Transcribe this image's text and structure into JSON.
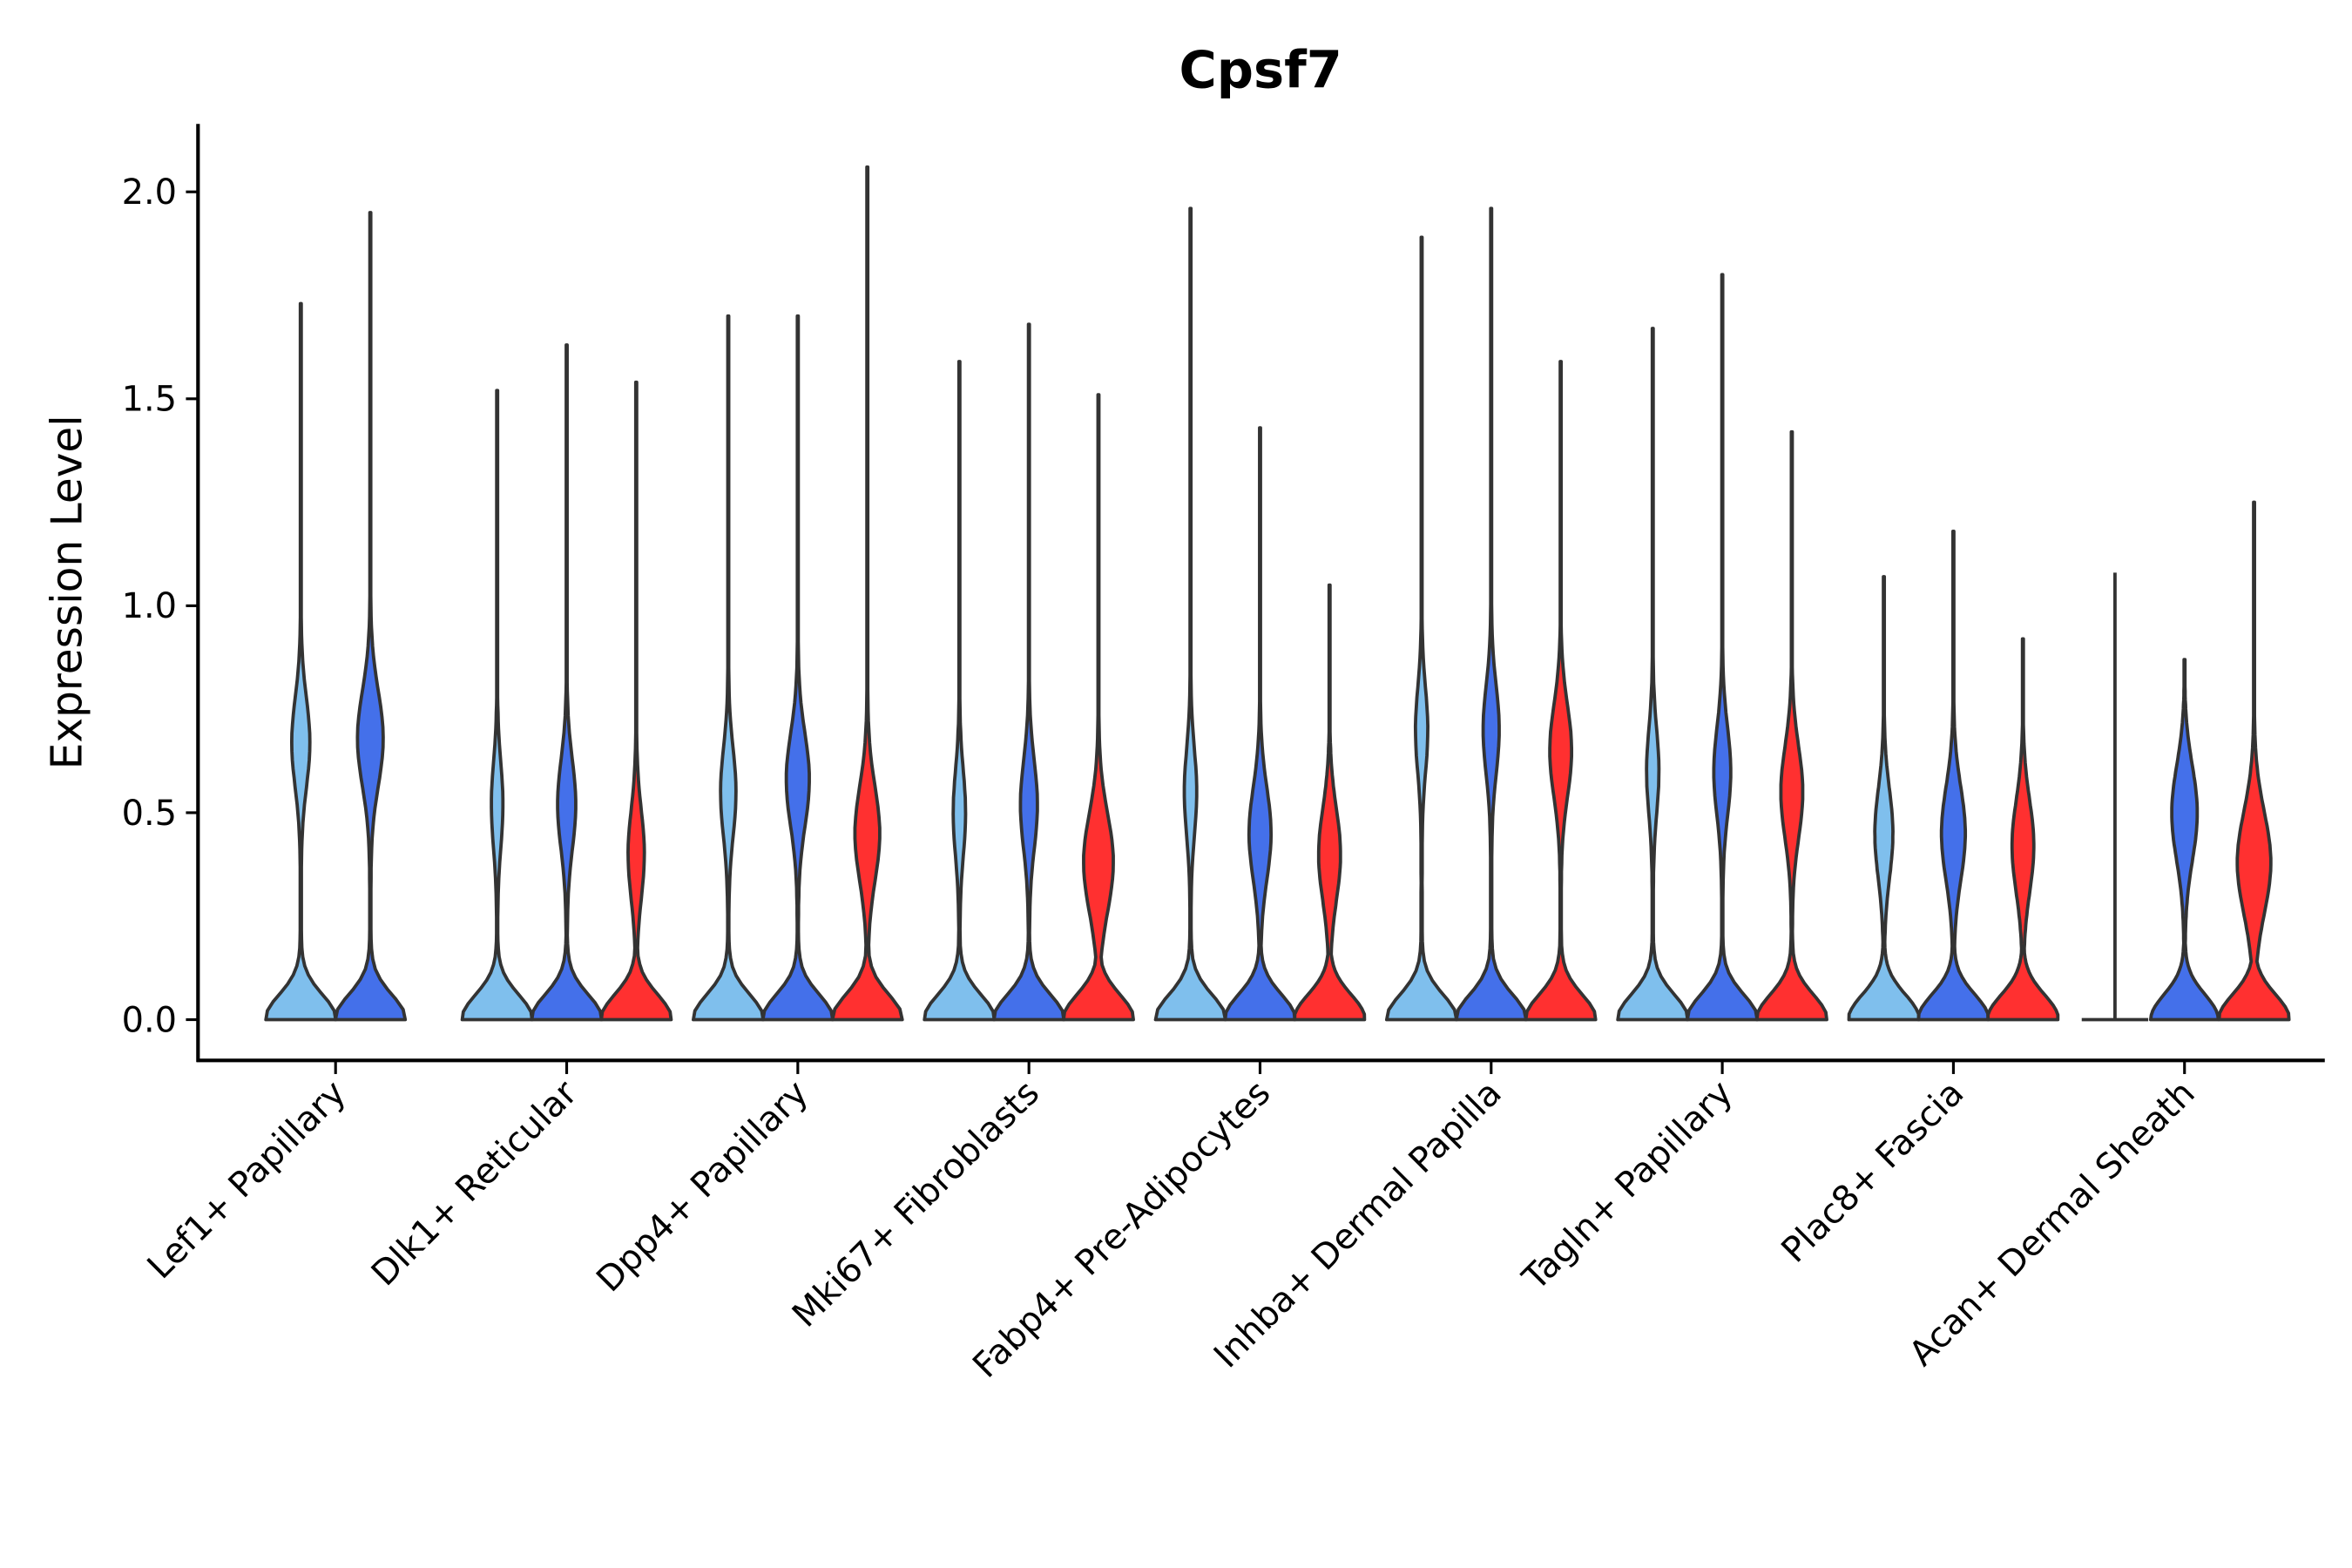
{
  "chart_data": {
    "type": "violin",
    "title": "Cpsf7",
    "xlabel": "",
    "ylabel": "Expression Level",
    "ylim": [
      -0.1,
      2.15
    ],
    "yticks": [
      0.0,
      0.5,
      1.0,
      1.5,
      2.0
    ],
    "ytick_labels": [
      "0.0",
      "0.5",
      "1.0",
      "1.5",
      "2.0"
    ],
    "grid": false,
    "legend": "none",
    "x_tick_rotation_deg": 45,
    "series_colors": {
      "light": "#7FBFED",
      "blue": "#4470EA",
      "red": "#FF3030"
    },
    "outline_color": "#333333",
    "categories": [
      "Lef1+ Papillary",
      "Dlk1+ Reticular",
      "Dpp4+ Papillary",
      "Mki67+ Fibroblasts",
      "Fabp4+ Pre-Adipocytes",
      "Inhba+ Dermal Papilla",
      "Tagln+ Papillary",
      "Plac8+ Fascia",
      "Acan+ Dermal Sheath"
    ],
    "groups": [
      {
        "category": "Lef1+ Papillary",
        "violins": [
          {
            "series": "light",
            "max": 1.73,
            "mode": 0.67,
            "mode_width": 0.45,
            "zero_width": 1.0
          },
          {
            "series": "blue",
            "max": 1.95,
            "mode": 0.68,
            "mode_width": 0.65,
            "zero_width": 1.0
          }
        ]
      },
      {
        "category": "Dlk1+ Reticular",
        "violins": [
          {
            "series": "light",
            "max": 1.52,
            "mode": 0.52,
            "mode_width": 0.28,
            "zero_width": 1.0
          },
          {
            "series": "blue",
            "max": 1.63,
            "mode": 0.52,
            "mode_width": 0.45,
            "zero_width": 1.0
          },
          {
            "series": "red",
            "max": 1.54,
            "mode": 0.4,
            "mode_width": 0.4,
            "zero_width": 1.0
          }
        ]
      },
      {
        "category": "Dpp4+ Papillary",
        "violins": [
          {
            "series": "light",
            "max": 1.7,
            "mode": 0.55,
            "mode_width": 0.38,
            "zero_width": 1.0
          },
          {
            "series": "blue",
            "max": 1.7,
            "mode": 0.58,
            "mode_width": 0.58,
            "zero_width": 1.0
          },
          {
            "series": "red",
            "max": 2.06,
            "mode": 0.45,
            "mode_width": 0.62,
            "zero_width": 1.0
          }
        ]
      },
      {
        "category": "Mki67+ Fibroblasts",
        "violins": [
          {
            "series": "light",
            "max": 1.59,
            "mode": 0.5,
            "mode_width": 0.3,
            "zero_width": 1.0
          },
          {
            "series": "blue",
            "max": 1.68,
            "mode": 0.52,
            "mode_width": 0.42,
            "zero_width": 1.0
          },
          {
            "series": "red",
            "max": 1.51,
            "mode": 0.38,
            "mode_width": 0.75,
            "zero_width": 1.0
          }
        ]
      },
      {
        "category": "Fabp4+ Pre-Adipocytes",
        "violins": [
          {
            "series": "light",
            "max": 1.96,
            "mode": 0.55,
            "mode_width": 0.3,
            "zero_width": 1.0
          },
          {
            "series": "blue",
            "max": 1.43,
            "mode": 0.45,
            "mode_width": 0.55,
            "zero_width": 1.0
          },
          {
            "series": "red",
            "max": 1.05,
            "mode": 0.4,
            "mode_width": 0.55,
            "zero_width": 1.0
          }
        ]
      },
      {
        "category": "Inhba+ Dermal Papilla",
        "violins": [
          {
            "series": "light",
            "max": 1.89,
            "mode": 0.7,
            "mode_width": 0.3,
            "zero_width": 1.0
          },
          {
            "series": "blue",
            "max": 1.96,
            "mode": 0.7,
            "mode_width": 0.4,
            "zero_width": 1.0
          },
          {
            "series": "red",
            "max": 1.59,
            "mode": 0.65,
            "mode_width": 0.55,
            "zero_width": 1.0
          }
        ]
      },
      {
        "category": "Tagln+ Papillary",
        "violins": [
          {
            "series": "light",
            "max": 1.67,
            "mode": 0.6,
            "mode_width": 0.3,
            "zero_width": 1.0
          },
          {
            "series": "blue",
            "max": 1.8,
            "mode": 0.6,
            "mode_width": 0.42,
            "zero_width": 1.0
          },
          {
            "series": "red",
            "max": 1.42,
            "mode": 0.55,
            "mode_width": 0.55,
            "zero_width": 1.0
          }
        ]
      },
      {
        "category": "Plac8+ Fascia",
        "violins": [
          {
            "series": "light",
            "max": 1.07,
            "mode": 0.45,
            "mode_width": 0.45,
            "zero_width": 1.0
          },
          {
            "series": "blue",
            "max": 1.18,
            "mode": 0.45,
            "mode_width": 0.6,
            "zero_width": 1.0
          },
          {
            "series": "red",
            "max": 0.92,
            "mode": 0.42,
            "mode_width": 0.55,
            "zero_width": 1.0
          }
        ]
      },
      {
        "category": "Acan+ Dermal Sheath",
        "violins": [
          {
            "series": "light",
            "max": 1.08,
            "mode": 0.0,
            "mode_width": 0.0,
            "zero_width": 0.0,
            "flat": true
          },
          {
            "series": "blue",
            "max": 0.87,
            "mode": 0.5,
            "mode_width": 0.65,
            "zero_width": 0.95
          },
          {
            "series": "red",
            "max": 1.25,
            "mode": 0.38,
            "mode_width": 0.85,
            "zero_width": 1.0
          }
        ]
      }
    ]
  }
}
